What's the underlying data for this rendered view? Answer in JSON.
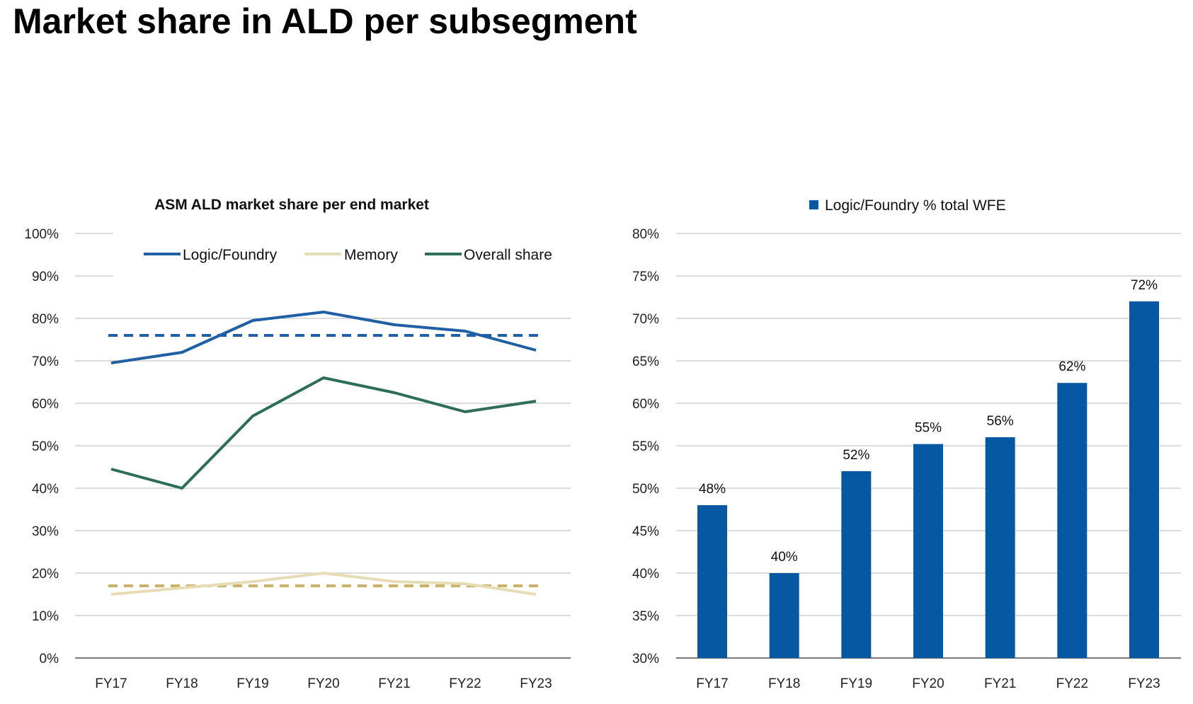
{
  "page": {
    "title": "Market share in ALD per subsegment"
  },
  "chart_data": [
    {
      "type": "line",
      "title": "ASM ALD market share per end market",
      "categories": [
        "FY17",
        "FY18",
        "FY19",
        "FY20",
        "FY21",
        "FY22",
        "FY23"
      ],
      "y_ticks": [
        "0%",
        "10%",
        "20%",
        "30%",
        "40%",
        "50%",
        "60%",
        "70%",
        "80%",
        "90%",
        "100%"
      ],
      "ylim": [
        0,
        100
      ],
      "legend_position": "top",
      "grid": true,
      "series": [
        {
          "name": "Logic/Foundry",
          "values": [
            69.5,
            72,
            79.5,
            81.5,
            78.5,
            77,
            72.5
          ],
          "color": "#1f5fa6"
        },
        {
          "name": "Memory",
          "values": [
            15,
            16.5,
            18,
            20,
            18,
            17.5,
            15
          ],
          "color": "#e8dcb5"
        },
        {
          "name": "Overall share",
          "values": [
            44.5,
            40,
            57,
            66,
            62.5,
            58,
            60.5
          ],
          "color": "#2e6e58"
        }
      ],
      "reference_lines": [
        {
          "value": 76,
          "color": "#1f5fa6",
          "style": "dashed"
        },
        {
          "value": 17,
          "color": "#c9b26a",
          "style": "dashed"
        }
      ]
    },
    {
      "type": "bar",
      "title": "",
      "categories": [
        "FY17",
        "FY18",
        "FY19",
        "FY20",
        "FY21",
        "FY22",
        "FY23"
      ],
      "y_ticks": [
        "30%",
        "35%",
        "40%",
        "45%",
        "50%",
        "55%",
        "60%",
        "65%",
        "70%",
        "75%",
        "80%"
      ],
      "ylim": [
        30,
        80
      ],
      "legend_position": "top",
      "grid": true,
      "series": [
        {
          "name": "Logic/Foundry % total WFE",
          "values": [
            48,
            40,
            52,
            55.2,
            56,
            62.4,
            72
          ],
          "labels": [
            "48%",
            "40%",
            "52%",
            "55%",
            "56%",
            "62%",
            "72%"
          ],
          "color": "#0758a3"
        }
      ]
    }
  ]
}
